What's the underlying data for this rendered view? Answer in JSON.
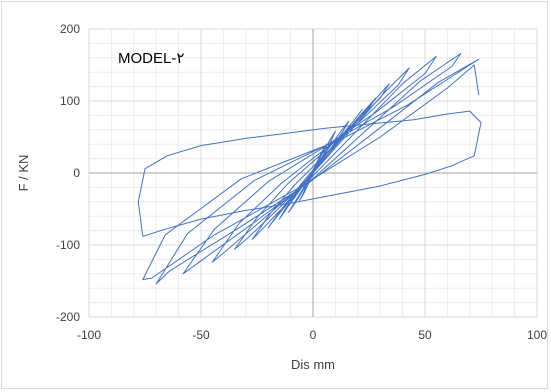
{
  "chart_data": {
    "type": "line",
    "title": "",
    "annotation": "MODEL-٢",
    "xlabel": "Dis mm",
    "ylabel": "F / KN",
    "xlim": [
      -100,
      100
    ],
    "ylim": [
      -200,
      200
    ],
    "x_ticks": [
      "-100",
      "-50",
      "0",
      "50",
      "100"
    ],
    "y_ticks": [
      "200",
      "100",
      "0",
      "-100",
      "-200"
    ],
    "major_grid": true,
    "minor_grid": true,
    "series_color": "#4472c4",
    "series": [
      {
        "name": "",
        "x": [
          0,
          2,
          4,
          6,
          4,
          1,
          -2,
          -4,
          -6,
          -4,
          -1,
          2,
          5,
          8,
          10,
          8,
          4,
          0,
          -4,
          -8,
          -11,
          -8,
          -4,
          1,
          6,
          12,
          16,
          13,
          7,
          1,
          -5,
          -11,
          -15,
          -12,
          -6,
          1,
          9,
          17,
          22,
          18,
          10,
          2,
          -6,
          -14,
          -20,
          -16,
          -8,
          1,
          11,
          21,
          28,
          24,
          13,
          3,
          -8,
          -19,
          -27,
          -22,
          -11,
          0,
          13,
          26,
          34,
          30,
          16,
          3,
          -11,
          -25,
          -35,
          -29,
          -15,
          0,
          16,
          32,
          43,
          38,
          21,
          4,
          -14,
          -33,
          -45,
          -38,
          -20,
          0,
          20,
          40,
          55,
          50,
          28,
          5,
          -20,
          -44,
          -58,
          -50,
          -26,
          0,
          24,
          48,
          66,
          62,
          36,
          8,
          -26,
          -56,
          -70,
          -64,
          -34,
          -2,
          28,
          56,
          74,
          70,
          42,
          12,
          -32,
          -66,
          -76,
          -72,
          -44,
          -6,
          30,
          60,
          72,
          74
        ],
        "y": [
          0,
          12,
          28,
          40,
          30,
          10,
          -10,
          -26,
          -38,
          -28,
          -8,
          14,
          32,
          48,
          58,
          44,
          22,
          0,
          -22,
          -42,
          -55,
          -40,
          -20,
          4,
          30,
          56,
          72,
          56,
          30,
          6,
          -20,
          -46,
          -64,
          -48,
          -24,
          6,
          38,
          68,
          88,
          72,
          40,
          12,
          -18,
          -50,
          -76,
          -60,
          -30,
          4,
          42,
          80,
          104,
          86,
          50,
          18,
          -16,
          -56,
          -92,
          -76,
          -40,
          2,
          48,
          96,
          124,
          104,
          62,
          24,
          -14,
          -62,
          -106,
          -90,
          -48,
          0,
          56,
          112,
          146,
          122,
          72,
          30,
          -14,
          -70,
          -124,
          -106,
          -58,
          -4,
          60,
          124,
          162,
          138,
          84,
          36,
          -12,
          -78,
          -140,
          -122,
          -68,
          -8,
          60,
          128,
          166,
          148,
          92,
          42,
          -10,
          -84,
          -154,
          -136,
          -78,
          -14,
          58,
          126,
          158,
          150,
          94,
          46,
          -8,
          -86,
          -148,
          -146,
          -86,
          -20,
          50,
          118,
          150,
          108
        ]
      },
      {
        "name": "",
        "x": [
          -76,
          -66,
          -50,
          -30,
          -10,
          0,
          10,
          30,
          50,
          62,
          72,
          75,
          70,
          60,
          45,
          25,
          5,
          -10,
          -30,
          -50,
          -65,
          -75,
          -78,
          -76
        ],
        "y": [
          -88,
          -78,
          -64,
          -52,
          -42,
          -36,
          -30,
          -18,
          -2,
          10,
          24,
          70,
          86,
          82,
          74,
          68,
          62,
          56,
          48,
          38,
          24,
          6,
          -40,
          -88
        ]
      }
    ]
  }
}
